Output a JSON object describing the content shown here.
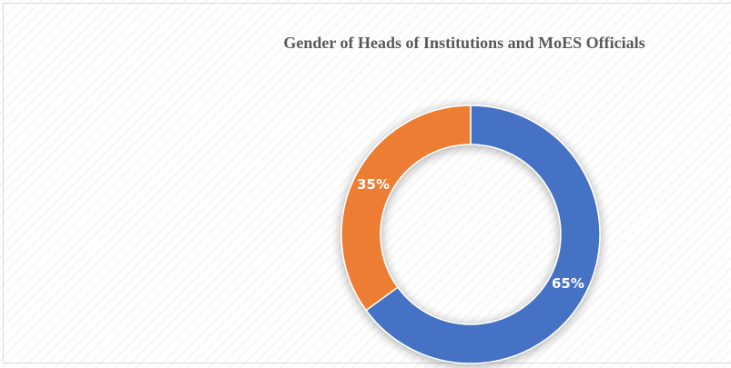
{
  "chart_data": {
    "type": "donut",
    "title": "Gender of Heads of Institutions and MoES Officials",
    "values": [
      65,
      35
    ],
    "value_labels": [
      "65%",
      "35%"
    ],
    "colors": [
      "#4472c4",
      "#ed7d31"
    ]
  }
}
